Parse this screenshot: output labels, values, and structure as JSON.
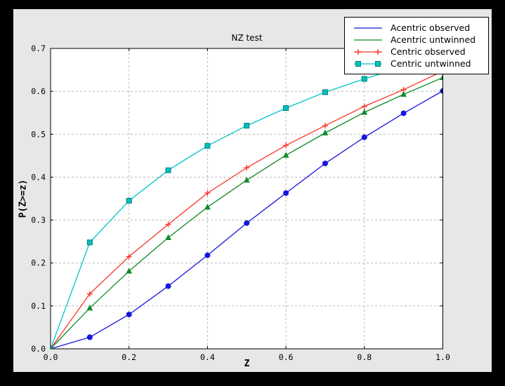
{
  "window": {
    "background_color": "#000000"
  },
  "figure": {
    "background_color": "#e7e7e7",
    "plot_background_color": "#ffffff",
    "grid_color": "#b8b8b8"
  },
  "chart_data": {
    "type": "line",
    "title": "NZ test",
    "xlabel": "Z",
    "ylabel": "P(Z>=z)",
    "xlim": [
      0.0,
      1.0
    ],
    "ylim": [
      0.0,
      0.7
    ],
    "x_ticks": [
      "0.0",
      "0.2",
      "0.4",
      "0.6",
      "0.8",
      "1.0"
    ],
    "y_ticks": [
      "0.0",
      "0.1",
      "0.2",
      "0.3",
      "0.4",
      "0.5",
      "0.6",
      "0.7"
    ],
    "grid": "dashed, on x ticks 0.2-0.8 and y ticks 0.1-0.6",
    "legend_position": "upper right",
    "x": [
      0.0,
      0.1,
      0.2,
      0.3,
      0.4,
      0.5,
      0.6,
      0.7,
      0.8,
      0.9,
      1.0
    ],
    "series": [
      {
        "name": "Acentric observed",
        "color": "#1515dd",
        "marker": "circle",
        "legend_marker": "none",
        "values": [
          0.0,
          0.027,
          0.08,
          0.146,
          0.218,
          0.293,
          0.363,
          0.432,
          0.493,
          0.549,
          0.601
        ]
      },
      {
        "name": "Acentric untwinned",
        "color": "#0e8a28",
        "marker": "triangle",
        "legend_marker": "none",
        "values": [
          0.0,
          0.095,
          0.181,
          0.259,
          0.33,
          0.393,
          0.451,
          0.503,
          0.551,
          0.593,
          0.632
        ]
      },
      {
        "name": "Centric observed",
        "color": "#f93527",
        "marker": "plus",
        "legend_marker": "plus",
        "values": [
          0.0,
          0.128,
          0.215,
          0.29,
          0.363,
          0.422,
          0.474,
          0.52,
          0.565,
          0.604,
          0.647
        ]
      },
      {
        "name": "Centric untwinned",
        "color": "#00c4c4",
        "marker": "square",
        "marker_fill": "#00bfbf",
        "marker_edge": "#007f7f",
        "legend_marker": "square",
        "values": [
          0.0,
          0.248,
          0.345,
          0.416,
          0.473,
          0.52,
          0.561,
          0.598,
          0.629,
          0.657,
          0.683
        ]
      }
    ]
  }
}
